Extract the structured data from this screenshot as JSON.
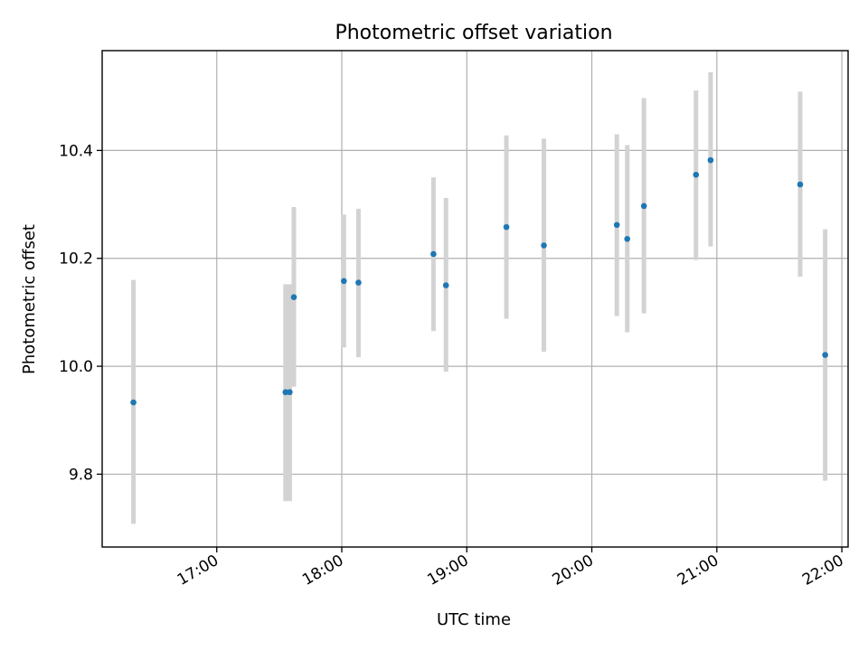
{
  "chart_data": {
    "type": "scatter",
    "title": "Photometric offset variation",
    "xlabel": "UTC time",
    "ylabel": "Photometric offset",
    "x_ticks": [
      "17:00",
      "18:00",
      "19:00",
      "20:00",
      "21:00",
      "22:00"
    ],
    "y_ticks": [
      "9.8",
      "10.0",
      "10.2",
      "10.4"
    ],
    "xlim": [
      "16:05",
      "22:03"
    ],
    "ylim": [
      9.665,
      10.585
    ],
    "grid": true,
    "colors": {
      "point": "#1f77b4",
      "errorbar": "#d3d3d3"
    },
    "points": [
      {
        "x": "16:20",
        "y": 9.933,
        "low": 9.708,
        "high": 10.16
      },
      {
        "x": "17:33",
        "y": 9.952,
        "low": 9.75,
        "high": 10.152
      },
      {
        "x": "17:35",
        "y": 9.952,
        "low": 9.75,
        "high": 10.152
      },
      {
        "x": "17:37",
        "y": 10.128,
        "low": 9.962,
        "high": 10.295
      },
      {
        "x": "18:01",
        "y": 10.158,
        "low": 10.035,
        "high": 10.281
      },
      {
        "x": "18:08",
        "y": 10.155,
        "low": 10.017,
        "high": 10.292
      },
      {
        "x": "18:44",
        "y": 10.208,
        "low": 10.065,
        "high": 10.35
      },
      {
        "x": "18:50",
        "y": 10.15,
        "low": 9.99,
        "high": 10.312
      },
      {
        "x": "19:19",
        "y": 10.258,
        "low": 10.088,
        "high": 10.428
      },
      {
        "x": "19:37",
        "y": 10.224,
        "low": 10.027,
        "high": 10.422
      },
      {
        "x": "20:12",
        "y": 10.262,
        "low": 10.093,
        "high": 10.43
      },
      {
        "x": "20:17",
        "y": 10.236,
        "low": 10.063,
        "high": 10.41
      },
      {
        "x": "20:25",
        "y": 10.297,
        "low": 10.098,
        "high": 10.497
      },
      {
        "x": "20:50",
        "y": 10.355,
        "low": 10.197,
        "high": 10.511
      },
      {
        "x": "20:57",
        "y": 10.382,
        "low": 10.222,
        "high": 10.545
      },
      {
        "x": "21:40",
        "y": 10.337,
        "low": 10.166,
        "high": 10.509
      },
      {
        "x": "21:52",
        "y": 10.021,
        "low": 9.788,
        "high": 10.254
      }
    ]
  }
}
